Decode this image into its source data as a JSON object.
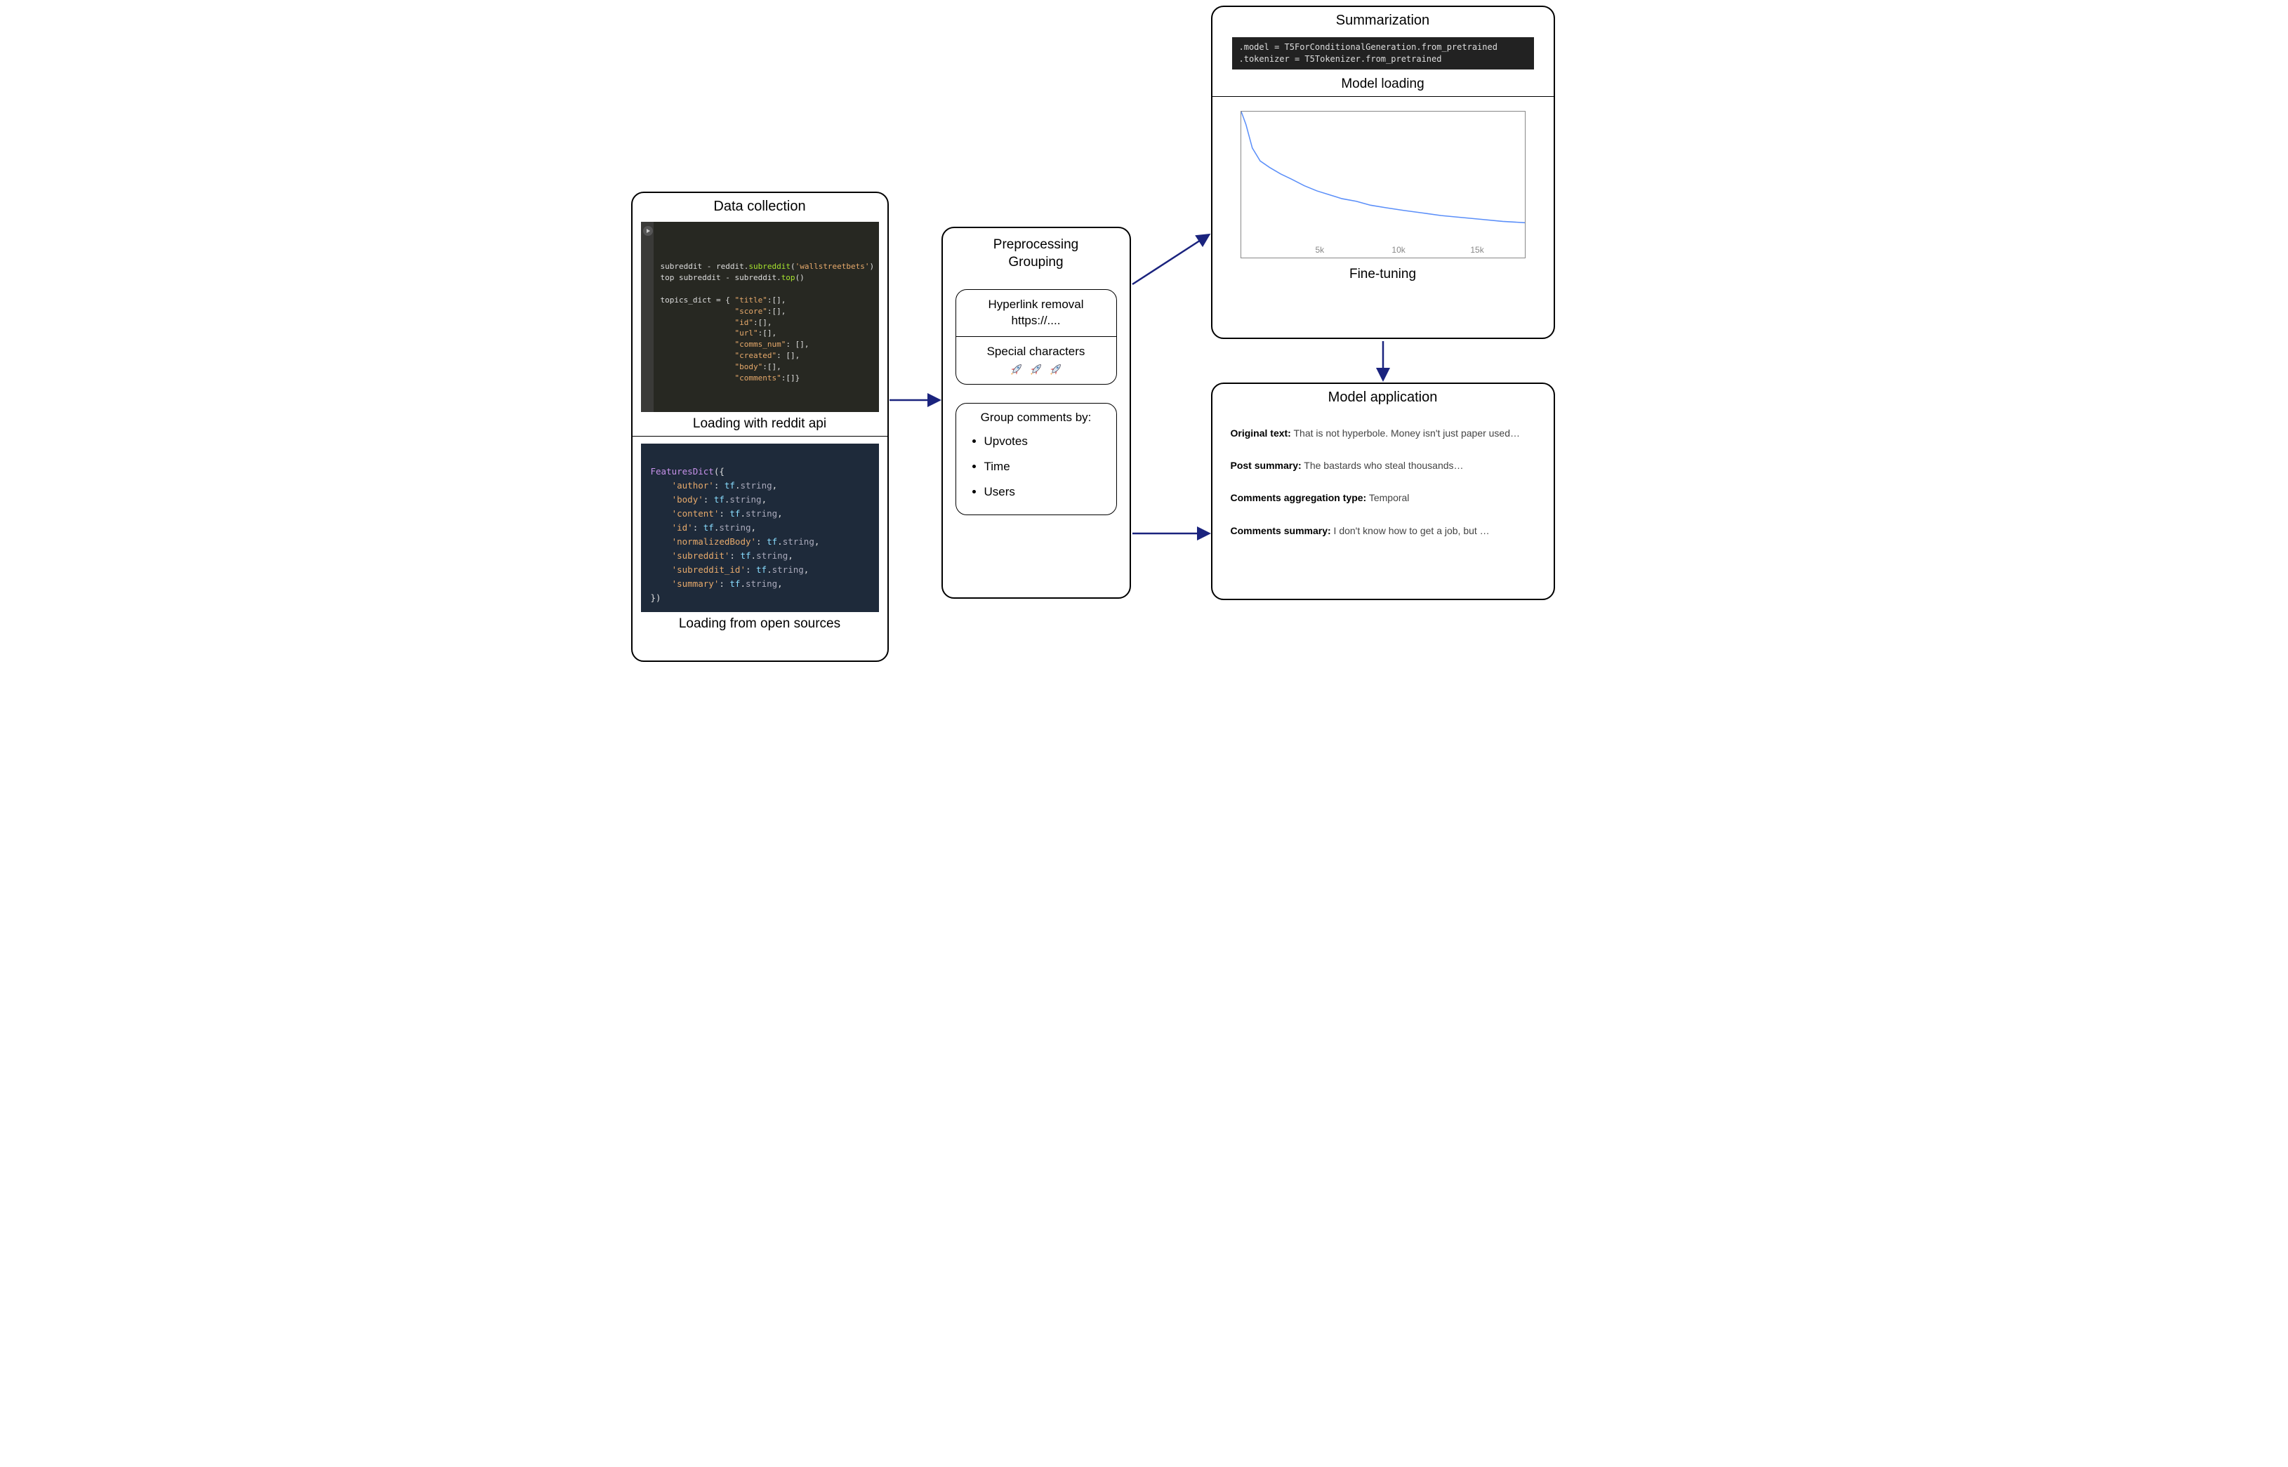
{
  "diagram": {
    "type": "flowchart",
    "nodes": [
      "data_collection",
      "preprocessing",
      "summarization",
      "application"
    ],
    "edges": [
      {
        "from": "data_collection",
        "to": "preprocessing"
      },
      {
        "from": "preprocessing",
        "to": "summarization"
      },
      {
        "from": "preprocessing",
        "to": "application"
      },
      {
        "from": "summarization",
        "to": "application"
      }
    ],
    "arrow_color": "#1a237e",
    "arrow_stroke_width": 2.5
  },
  "data_collection": {
    "title": "Data collection",
    "api_code": "subreddit - reddit.subreddit('wallstreetbets')\ntop subreddit - subreddit.top()\n\ntopics_dict = { \"title\":[],\n                \"score\":[],\n                \"id\":[],\n                \"url\":[],\n                \"comms_num\": [],\n                \"created\": [],\n                \"body\":[],\n                \"comments\":[]}",
    "caption1": "Loading with reddit api",
    "features_code": "FeaturesDict({\n    'author': tf.string,\n    'body': tf.string,\n    'content': tf.string,\n    'id': tf.string,\n    'normalizedBody': tf.string,\n    'subreddit': tf.string,\n    'subreddit_id': tf.string,\n    'summary': tf.string,\n})",
    "caption2": "Loading from open sources",
    "code_bg1": "#272822",
    "code_bg2": "#1e2a3a"
  },
  "preprocessing": {
    "title": "Preprocessing\nGrouping",
    "card1": {
      "row1": "Hyperlink removal\nhttps://....",
      "row2": "Special characters",
      "rockets": 3,
      "rocket_colors": {
        "body": "#d9e6f2",
        "fin": "#d94f4f",
        "flame": "#f7a440"
      }
    },
    "card2": {
      "title": "Group comments by:",
      "items": [
        "Upvotes",
        "Time",
        "Users"
      ]
    }
  },
  "summarization": {
    "title": "Summarization",
    "code": ".model = T5ForConditionalGeneration.from_pretrained\n.tokenizer = T5Tokenizer.from_pretrained",
    "caption1": "Model loading",
    "chart": {
      "type": "line",
      "xlim": [
        0,
        18000
      ],
      "ylim": [
        0,
        1.0
      ],
      "xticks": [
        5000,
        10000,
        15000
      ],
      "xtick_labels": [
        "5k",
        "10k",
        "15k"
      ],
      "series": {
        "color": "#5b8ff9",
        "stroke_width": 1.5,
        "points": [
          [
            0,
            1.0
          ],
          [
            300,
            0.9
          ],
          [
            700,
            0.72
          ],
          [
            1200,
            0.62
          ],
          [
            1800,
            0.57
          ],
          [
            2500,
            0.52
          ],
          [
            3200,
            0.48
          ],
          [
            4000,
            0.43
          ],
          [
            4800,
            0.39
          ],
          [
            5600,
            0.36
          ],
          [
            6400,
            0.33
          ],
          [
            7300,
            0.31
          ],
          [
            8200,
            0.28
          ],
          [
            9200,
            0.26
          ],
          [
            10300,
            0.24
          ],
          [
            11500,
            0.22
          ],
          [
            12700,
            0.2
          ],
          [
            14000,
            0.185
          ],
          [
            15300,
            0.17
          ],
          [
            16600,
            0.155
          ],
          [
            18000,
            0.145
          ]
        ]
      },
      "background_color": "#ffffff",
      "border_color": "#888888"
    },
    "caption2": "Fine-tuning"
  },
  "application": {
    "title": "Model application",
    "rows": [
      {
        "label": "Original text:",
        "value": " That is not hyperbole. Money isn't just paper used…"
      },
      {
        "label": "Post summary:",
        "value": " The bastards who steal thousands…"
      },
      {
        "label": "Comments aggregation type:",
        "value": " Temporal"
      },
      {
        "label": "Comments summary:",
        "value": " I don't know how to get a job, but …"
      }
    ]
  },
  "style": {
    "border_radius": 18,
    "border_color": "#000000",
    "border_width": 2.5,
    "font_family": "Arial",
    "title_fontsize": 20,
    "body_fontsize": 17
  }
}
